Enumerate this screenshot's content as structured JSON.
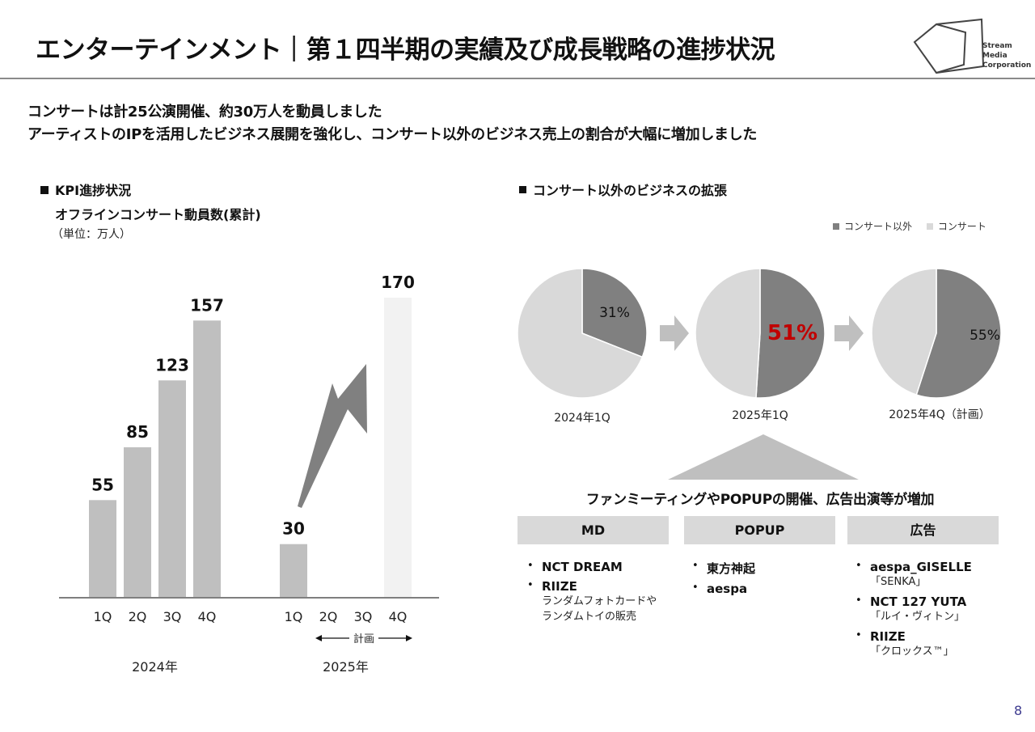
{
  "header": {
    "title": "エンターテインメント｜第１四半期の実績及び成長戦略の進捗状況",
    "logo_lines": [
      "Stream",
      "Media",
      "Corporation"
    ]
  },
  "lead": {
    "line1": "コンサートは計25公演開催、約30万人を動員しました",
    "line2": "アーティストのIPを活用したビジネス展開を強化し、コンサート以外のビジネス売上の割合が大幅に増加しました"
  },
  "kpi": {
    "heading": "KPI進捗状況",
    "subtitle": "オフラインコンサート動員数(累計)",
    "unit": "（単位：万人）",
    "plan_label": "計画",
    "colors": {
      "actual": "#bfbfbf",
      "plan": "#f2f2f2",
      "arrow": "#808080"
    }
  },
  "chart_data": [
    {
      "type": "bar",
      "title": "",
      "groups": [
        {
          "year": "2024年",
          "categories": [
            "1Q",
            "2Q",
            "3Q",
            "4Q"
          ],
          "values": [
            55,
            85,
            123,
            157
          ]
        },
        {
          "year": "2025年",
          "categories": [
            "1Q",
            "2Q",
            "3Q",
            "4Q"
          ],
          "values": [
            30,
            null,
            null,
            170
          ],
          "planned": [
            false,
            false,
            false,
            true
          ]
        }
      ],
      "ylim": [
        0,
        180
      ],
      "xlabel": "",
      "ylabel": ""
    },
    {
      "type": "pie",
      "series": [
        "コンサート以外",
        "コンサート"
      ],
      "colors": [
        "#808080",
        "#d9d9d9"
      ],
      "pies": [
        {
          "label": "2024年1Q",
          "values": [
            31,
            69
          ],
          "display": "31%"
        },
        {
          "label": "2025年1Q",
          "values": [
            51,
            49
          ],
          "display": "51%",
          "highlight": true
        },
        {
          "label": "2025年4Q（計画）",
          "values": [
            55,
            45
          ],
          "display": "55%"
        }
      ]
    }
  ],
  "business": {
    "heading": "コンサート以外のビジネスの拡張",
    "summary": "ファンミーティングやPOPUPの開催、広告出演等が増加",
    "columns": [
      {
        "header": "MD",
        "items": [
          {
            "bold": "NCT DREAM",
            "sub": []
          },
          {
            "bold": "RIIZE",
            "sub": [
              "ランダムフォトカードや",
              "ランダムトイの販売"
            ]
          }
        ]
      },
      {
        "header": "POPUP",
        "items": [
          {
            "bold": "東方神起",
            "sub": []
          },
          {
            "bold": "aespa",
            "sub": []
          }
        ]
      },
      {
        "header": "広告",
        "items": [
          {
            "bold": "aespa_GISELLE",
            "sub": [
              "「SENKA」"
            ]
          },
          {
            "bold": "NCT 127  YUTA",
            "sub": [
              "「ルイ・ヴィトン」"
            ]
          },
          {
            "bold": "RIIZE",
            "sub": [
              "「クロックス™」"
            ]
          }
        ]
      }
    ]
  },
  "page_number": "8",
  "accent": {
    "highlight": "#c00000",
    "page_number": "#3d3a8f"
  }
}
